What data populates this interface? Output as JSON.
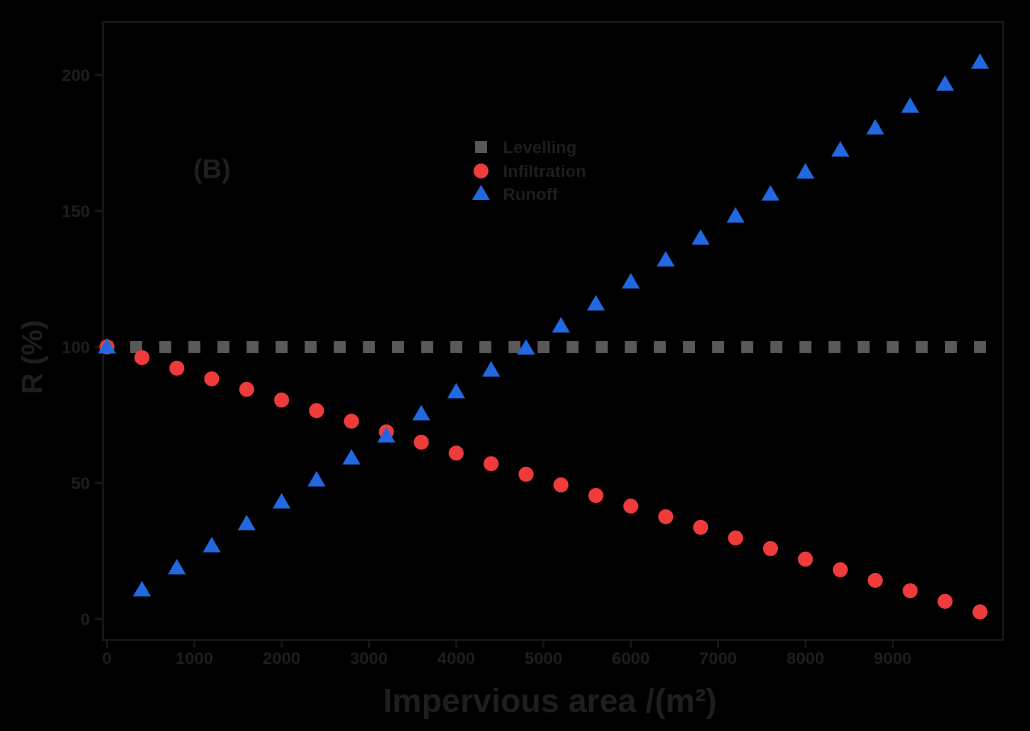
{
  "figure": {
    "background_color": "#000000",
    "text_color": "#1e1e1e",
    "axis_color": "#161616",
    "annotation": "(B)"
  },
  "chart_data": {
    "type": "scatter",
    "title": "",
    "xlabel": "Impervious area /(m²)",
    "ylabel": "R (%)",
    "xlim": [
      0,
      10300
    ],
    "ylim": [
      0,
      218
    ],
    "x_ticks": [
      0,
      1000,
      2000,
      3000,
      4000,
      5000,
      6000,
      7000,
      8000,
      9000
    ],
    "y_ticks": [
      0,
      50,
      100,
      150,
      200
    ],
    "grid": false,
    "legend_position": "inside upper-center",
    "series": [
      {
        "name": "Levelling",
        "marker": "square",
        "color": "#595959",
        "x": [
          0,
          333,
          667,
          1000,
          1333,
          1667,
          2000,
          2333,
          2667,
          3000,
          3333,
          3667,
          4000,
          4333,
          4667,
          5000,
          5333,
          5667,
          6000,
          6333,
          6667,
          7000,
          7333,
          7667,
          8000,
          8333,
          8667,
          9000,
          9333,
          9667,
          10000
        ],
        "y": [
          100,
          100,
          100,
          100,
          100,
          100,
          100,
          100,
          100,
          100,
          100,
          100,
          100,
          100,
          100,
          100,
          100,
          100,
          100,
          100,
          100,
          100,
          100,
          100,
          100,
          100,
          100,
          100,
          100,
          100,
          100
        ]
      },
      {
        "name": "Infiltration",
        "marker": "circle",
        "color": "#ef3b3c",
        "x": [
          0,
          400,
          800,
          1200,
          1600,
          2000,
          2400,
          2800,
          3200,
          3600,
          4000,
          4400,
          4800,
          5200,
          5600,
          6000,
          6400,
          6800,
          7200,
          7600,
          8000,
          8400,
          8800,
          9200,
          9600,
          10000
        ],
        "y": [
          100,
          96.1,
          92.2,
          88.3,
          84.4,
          80.5,
          76.6,
          72.7,
          68.8,
          65.0,
          61.0,
          57.1,
          53.2,
          49.3,
          45.4,
          41.5,
          37.6,
          33.7,
          29.8,
          25.9,
          22.0,
          18.1,
          14.2,
          10.4,
          6.5,
          2.6
        ]
      },
      {
        "name": "Runoff",
        "marker": "triangle",
        "color": "#2268e0",
        "x": [
          0,
          400,
          800,
          1200,
          1600,
          2000,
          2400,
          2800,
          3200,
          3600,
          4000,
          4400,
          4800,
          5200,
          5600,
          6000,
          6400,
          6800,
          7200,
          7600,
          8000,
          8400,
          8800,
          9200,
          9600,
          10000
        ],
        "y": [
          100,
          10.7,
          18.8,
          26.9,
          35.0,
          43.0,
          51.1,
          59.2,
          67.3,
          75.4,
          83.5,
          91.5,
          99.6,
          107.7,
          115.8,
          123.9,
          132.0,
          140.0,
          148.1,
          156.2,
          164.3,
          172.4,
          180.5,
          188.5,
          196.6,
          204.7
        ]
      }
    ]
  }
}
